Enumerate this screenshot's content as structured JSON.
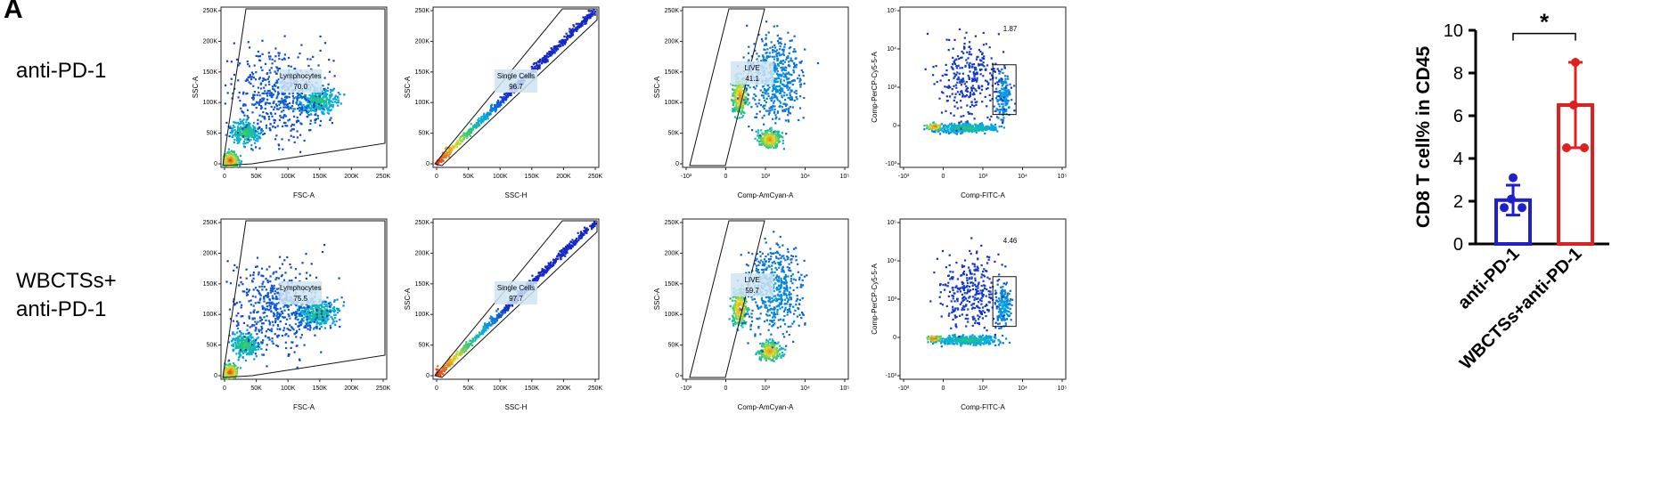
{
  "panel_letter": "A",
  "rows": [
    {
      "label_lines": [
        "anti-PD-1"
      ],
      "plots": [
        {
          "id": "lymph",
          "xlabel": "FSC-A",
          "ylabel": "SSC-A",
          "gate_name": "Lymphocytes",
          "gate_value": "70.0",
          "xticks": [
            "0",
            "50K",
            "100K",
            "150K",
            "200K",
            "250K"
          ],
          "yticks": [
            "0",
            "50K",
            "100K",
            "150K",
            "200K",
            "250K"
          ]
        },
        {
          "id": "single",
          "xlabel": "SSC-H",
          "ylabel": "SSC-A",
          "gate_name": "Single Cells",
          "gate_value": "96.7",
          "xticks": [
            "0",
            "50K",
            "100K",
            "150K",
            "200K",
            "250K"
          ],
          "yticks": [
            "0",
            "50K",
            "100K",
            "150K",
            "200K",
            "250K"
          ]
        },
        {
          "id": "live",
          "xlabel": "Comp-AmCyan-A",
          "ylabel": "SSC-A",
          "gate_name": "LIVE",
          "gate_value": "41.1",
          "xticks": [
            "-10³",
            "0",
            "10³",
            "10⁴",
            "10⁵"
          ],
          "yticks": [
            "0",
            "50K",
            "100K",
            "150K",
            "200K",
            "250K"
          ]
        },
        {
          "id": "cd8",
          "xlabel": "Comp-FITC-A",
          "ylabel": "Comp-PerCP-Cy5-5-A",
          "gate_name": "",
          "gate_value": "1.87",
          "xticks": [
            "-10³",
            "0",
            "10³",
            "10⁴",
            "10⁵"
          ],
          "yticks": [
            "-10³",
            "0",
            "10³",
            "10⁴",
            "10⁵"
          ]
        }
      ]
    },
    {
      "label_lines": [
        "WBCTSs+",
        "anti-PD-1"
      ],
      "plots": [
        {
          "id": "lymph",
          "xlabel": "FSC-A",
          "ylabel": "",
          "gate_name": "Lymphocytes",
          "gate_value": "75.5",
          "xticks": [
            "0",
            "50K",
            "100K",
            "150K",
            "200K",
            "250K"
          ],
          "yticks": [
            "0",
            "50K",
            "100K",
            "150K",
            "200K",
            "250K"
          ]
        },
        {
          "id": "single",
          "xlabel": "SSC-H",
          "ylabel": "SSC-A",
          "gate_name": "Single Cells",
          "gate_value": "97.7",
          "xticks": [
            "0",
            "50K",
            "100K",
            "150K",
            "200K",
            "250K"
          ],
          "yticks": [
            "0",
            "50K",
            "100K",
            "150K",
            "200K",
            "250K"
          ]
        },
        {
          "id": "live",
          "xlabel": "Comp-AmCyan-A",
          "ylabel": "SSC-A",
          "gate_name": "LIVE",
          "gate_value": "59.7",
          "xticks": [
            "-10³",
            "0",
            "10³",
            "10⁴",
            "10⁵"
          ],
          "yticks": [
            "0",
            "50K",
            "100K",
            "150K",
            "200K",
            "250K"
          ]
        },
        {
          "id": "cd8",
          "xlabel": "Comp-FITC-A",
          "ylabel": "Comp-PerCP-Cy5-5-A",
          "gate_name": "",
          "gate_value": "4.46",
          "xticks": [
            "-10³",
            "0",
            "10³",
            "10⁴",
            "10⁵"
          ],
          "yticks": [
            "-10³",
            "0",
            "10³",
            "10⁴",
            "10⁵"
          ]
        }
      ]
    }
  ],
  "chart_data": {
    "type": "bar",
    "categories": [
      "anti-PD-1",
      "WBCTSs+anti-PD-1"
    ],
    "values": [
      2.05,
      6.5
    ],
    "errors": [
      0.7,
      2.0
    ],
    "points": [
      [
        3.1,
        2.1,
        1.7,
        1.7
      ],
      [
        8.5,
        6.5,
        4.5,
        4.5
      ]
    ],
    "colors": [
      "#1f1fcc",
      "#e02020"
    ],
    "ylabel": "CD8 T cell% in CD45",
    "ylim": [
      0,
      10
    ],
    "yticks": [
      0,
      2,
      4,
      6,
      8,
      10
    ],
    "significance": "*",
    "grid": false
  }
}
